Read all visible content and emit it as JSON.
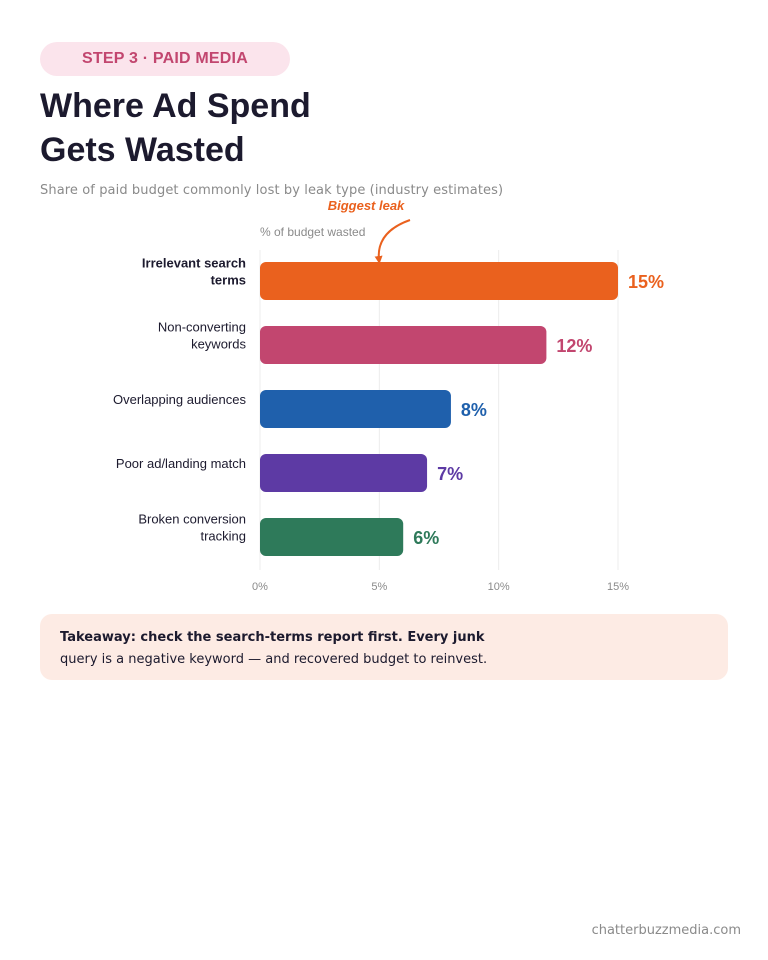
{
  "badge": "STEP 3 · PAID MEDIA",
  "title_lines": [
    "Where Ad Spend",
    "Gets Wasted"
  ],
  "subtitle": "Share of paid budget commonly lost by leak type (industry estimates)",
  "chart_data": {
    "type": "bar",
    "orientation": "horizontal",
    "axis_title": "% of budget wasted",
    "categories": [
      [
        "Irrelevant search",
        "terms"
      ],
      [
        "Non-converting",
        "keywords"
      ],
      [
        "Overlapping audiences"
      ],
      [
        "Poor ad/landing match"
      ],
      [
        "Broken conversion",
        "tracking"
      ]
    ],
    "values": [
      15,
      12,
      8,
      7,
      6
    ],
    "value_labels": [
      "15%",
      "12%",
      "8%",
      "7%",
      "6%"
    ],
    "colors": [
      "#ea611e",
      "#c2466f",
      "#1f60ac",
      "#5d3aa4",
      "#2e7a5a"
    ],
    "xlim": [
      0,
      15
    ],
    "xticks": [
      0,
      5,
      10,
      15
    ],
    "xtick_labels": [
      "0%",
      "5%",
      "10%",
      "15%"
    ],
    "grid": true,
    "annotation": {
      "text": "Biggest leak",
      "target_index": 0,
      "color": "#ea611e"
    }
  },
  "takeaway": {
    "lead": "Takeaway: check the search-terms report first. Every junk",
    "rest": "query is a negative keyword — and recovered budget to reinvest."
  },
  "footer": "chatterbuzzmedia.com"
}
